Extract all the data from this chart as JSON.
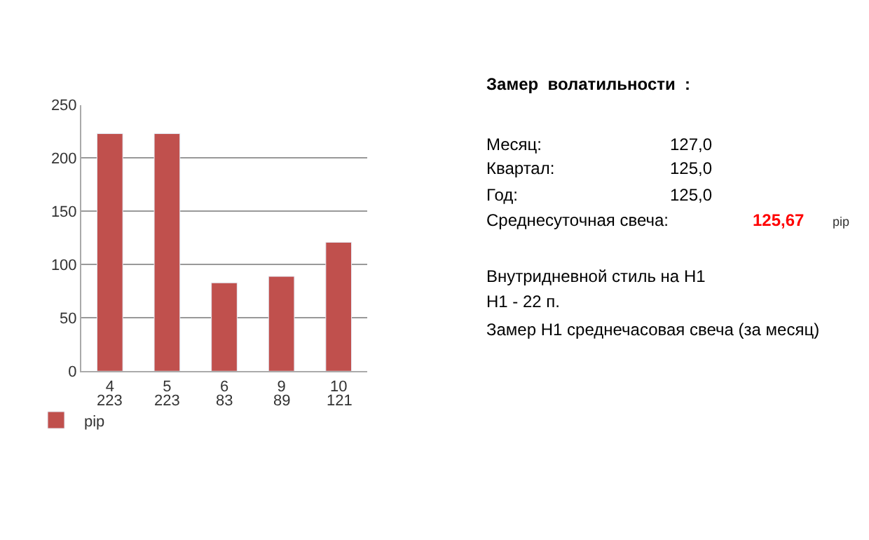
{
  "chart_data": [
    {
      "type": "bar",
      "categories": [
        "4",
        "5",
        "6",
        "9",
        "10"
      ],
      "series": [
        {
          "name": "pip",
          "color": "#c0504d",
          "values": [
            223,
            223,
            83,
            89,
            121
          ]
        }
      ],
      "ylim": [
        0,
        250
      ],
      "yticks": [
        0,
        50,
        100,
        150,
        200,
        250
      ],
      "grid": "y",
      "data_labels": true,
      "legend": "bottom left"
    },
    {
      "type": "other",
      "annotations": [
        "Замер  волатильности  :",
        "Месяц:",
        "127,0",
        "Квартал:",
        "125,0",
        "Год:",
        "125,0",
        "Среднесуточная свеча:",
        "125,67",
        "pip",
        "Внутридневной стиль на H1",
        "H1 - 22 п.",
        "Замер H1 среднечасовая свеча (за месяц)"
      ]
    }
  ]
}
